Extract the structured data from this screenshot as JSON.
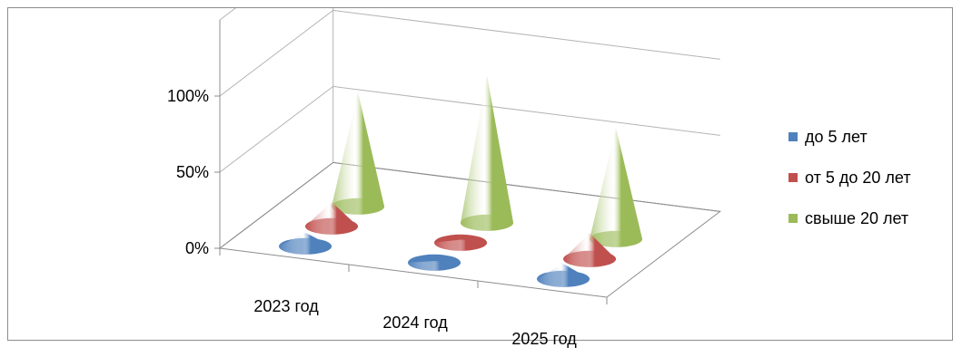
{
  "chart_data": {
    "type": "3d-cone",
    "categories": [
      "2023 год",
      "2024 год",
      "2025 год"
    ],
    "series": [
      {
        "name": "до 5 лет",
        "values": [
          9,
          1,
          10
        ]
      },
      {
        "name": "от 5 до 20 лет",
        "values": [
          16,
          2,
          17
        ]
      },
      {
        "name": "свыше 20 лет",
        "values": [
          75,
          97,
          73
        ]
      }
    ],
    "y_ticks": [
      "0%",
      "50%",
      "100%"
    ],
    "ylim": [
      0,
      150
    ],
    "stacked_percent": false,
    "grid": true,
    "legend_position": "right"
  },
  "colors": {
    "series_1": "#4f81bd",
    "series_2": "#c0504d",
    "series_3": "#9bbb59",
    "axis": "#8c8c8c",
    "grid": "#b4b4b4"
  }
}
